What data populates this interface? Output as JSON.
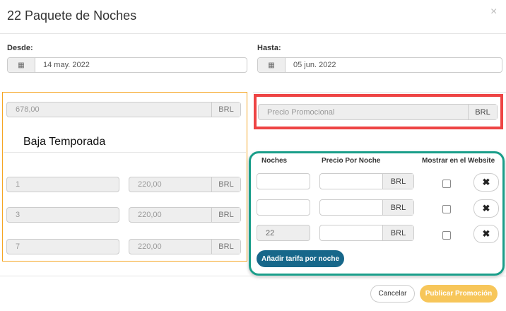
{
  "title": "22 Paquete de Noches",
  "close_icon": "×",
  "desde": {
    "label": "Desde:",
    "value": "14 may. 2022",
    "icon": "calendar-icon"
  },
  "hasta": {
    "label": "Hasta:",
    "value": "05 jun. 2022",
    "icon": "calendar-icon"
  },
  "left": {
    "base_price": "678,00",
    "currency": "BRL",
    "season": "Baja Temporada",
    "rows": [
      {
        "nights": "1",
        "price": "220,00"
      },
      {
        "nights": "3",
        "price": "220,00"
      },
      {
        "nights": "7",
        "price": "220,00"
      }
    ]
  },
  "promo": {
    "placeholder": "Precio Promocional",
    "currency": "BRL"
  },
  "right": {
    "headers": {
      "nights": "Noches",
      "price": "Precio Por Noche",
      "website": "Mostrar en el Website"
    },
    "rows": [
      {
        "nights": "",
        "currency": "BRL"
      },
      {
        "nights": "",
        "currency": "BRL"
      },
      {
        "nights": "22",
        "currency": "BRL"
      }
    ],
    "add_button": "Añadir tarifa por noche",
    "remove_icon": "✖"
  },
  "footer": {
    "cancel": "Cancelar",
    "publish": "Publicar Promoción"
  },
  "colors": {
    "orange_box": "#f5a623",
    "red_box": "#ee4444",
    "teal_box": "#1a9e8a",
    "add_button": "#17678a",
    "publish_button": "#f7c65a"
  }
}
